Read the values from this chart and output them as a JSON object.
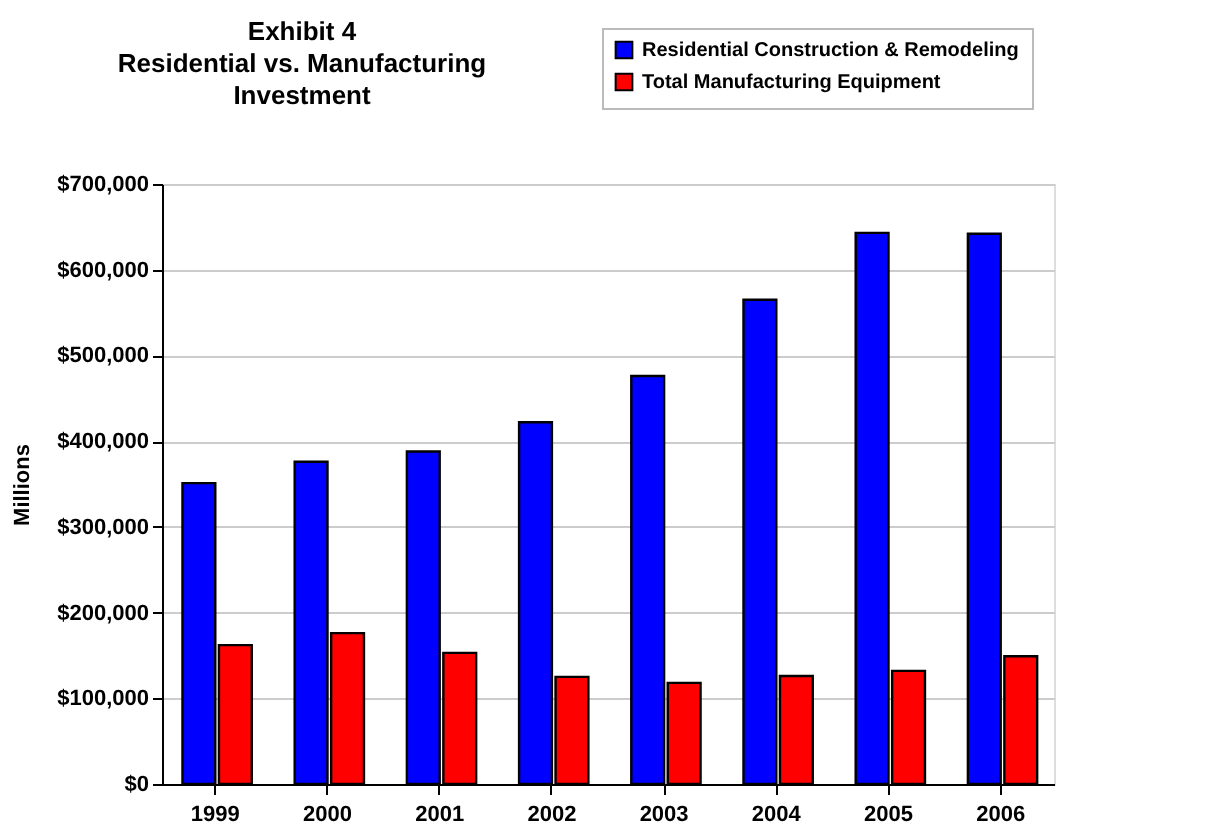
{
  "chart_data": {
    "type": "bar",
    "title": [
      "Exhibit 4",
      "Residential vs. Manufacturing",
      "Investment"
    ],
    "ylabel": "Millions",
    "categories": [
      "1999",
      "2000",
      "2001",
      "2002",
      "2003",
      "2004",
      "2005",
      "2006"
    ],
    "series": [
      {
        "name": "Residential Construction & Remodeling",
        "color": "#0000ff",
        "values": [
          351000,
          376000,
          388000,
          422000,
          476000,
          565000,
          643000,
          642000
        ]
      },
      {
        "name": "Total Manufacturing Equipment",
        "color": "#ff0000",
        "values": [
          162000,
          176000,
          153000,
          125000,
          118000,
          126000,
          132000,
          149000
        ]
      }
    ],
    "ylim": [
      0,
      700000
    ],
    "yticks": [
      {
        "value": 0,
        "label": "$0"
      },
      {
        "value": 100000,
        "label": "$100,000"
      },
      {
        "value": 200000,
        "label": "$200,000"
      },
      {
        "value": 300000,
        "label": "$300,000"
      },
      {
        "value": 400000,
        "label": "$400,000"
      },
      {
        "value": 500000,
        "label": "$500,000"
      },
      {
        "value": 600000,
        "label": "$600,000"
      },
      {
        "value": 700000,
        "label": "$700,000"
      }
    ],
    "grid": "y",
    "legend": "top right"
  }
}
